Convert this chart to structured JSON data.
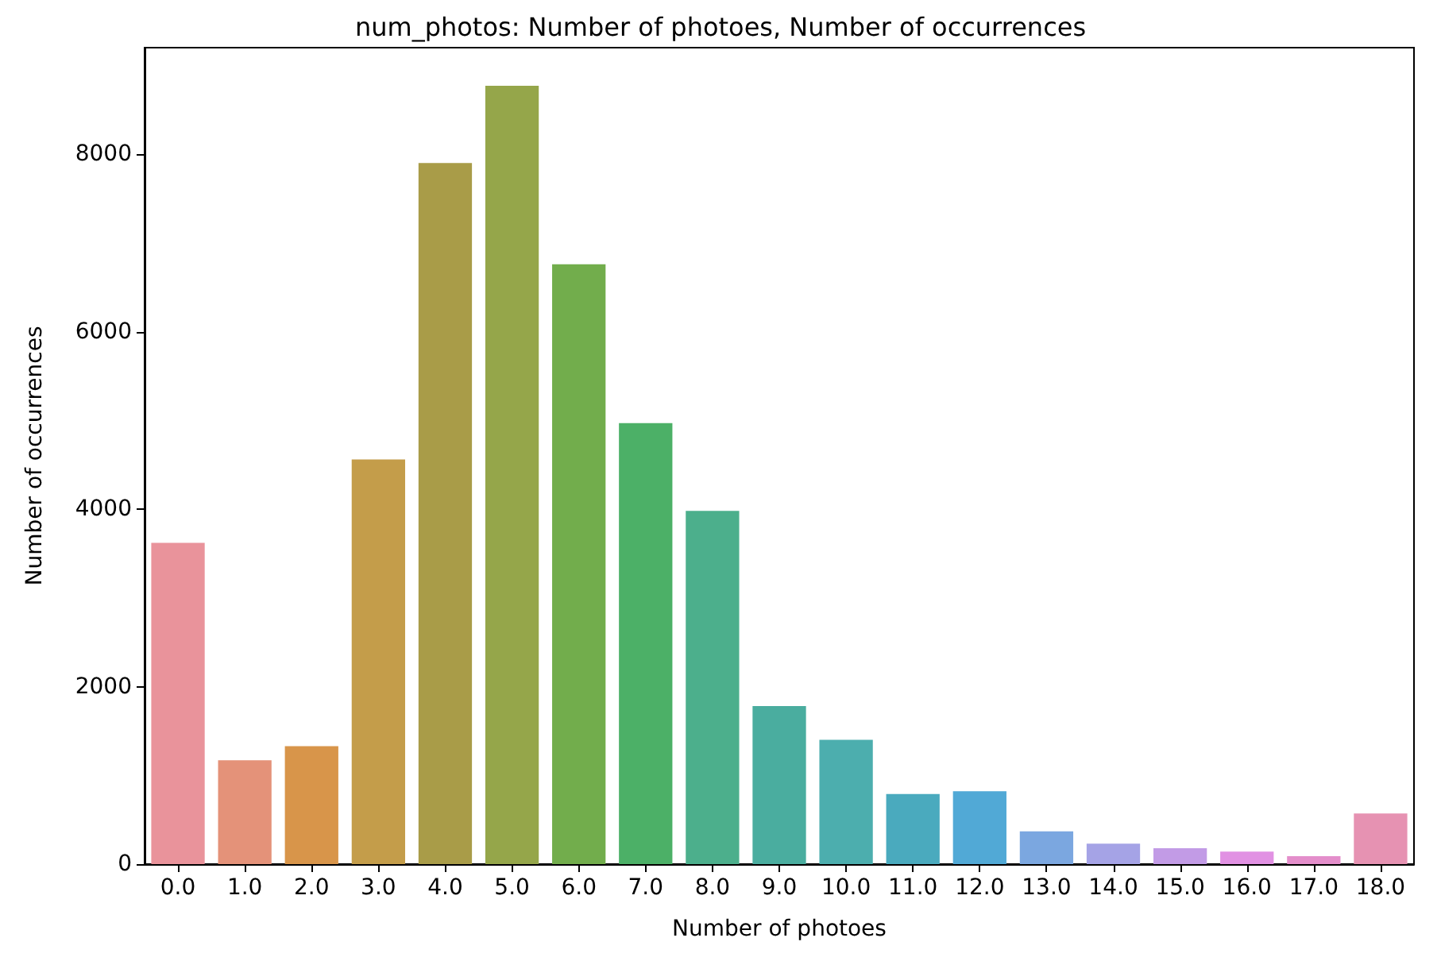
{
  "chart_data": {
    "type": "bar",
    "title": "num_photos: Number of photoes, Number of occurrences",
    "xlabel": "Number of photoes",
    "ylabel": "Number of occurrences",
    "categories": [
      "0.0",
      "1.0",
      "2.0",
      "3.0",
      "4.0",
      "5.0",
      "6.0",
      "7.0",
      "8.0",
      "9.0",
      "10.0",
      "11.0",
      "12.0",
      "13.0",
      "14.0",
      "15.0",
      "16.0",
      "17.0",
      "18.0"
    ],
    "values": [
      3620,
      1170,
      1330,
      4560,
      7900,
      8770,
      6760,
      4970,
      3980,
      1780,
      1400,
      790,
      820,
      370,
      230,
      180,
      140,
      90,
      570
    ],
    "colors": [
      "#e9939b",
      "#e49279",
      "#d8954a",
      "#c49d4a",
      "#a99c48",
      "#95a64a",
      "#72ad4c",
      "#4cb067",
      "#4caf8c",
      "#4aad9f",
      "#4caeae",
      "#4aaabe",
      "#51a9d6",
      "#7ba7e0",
      "#a5a3e6",
      "#c29be6",
      "#e191e3",
      "#e48ecb",
      "#e692b2"
    ],
    "ylim": [
      0,
      9200
    ],
    "yticks": [
      0,
      2000,
      4000,
      6000,
      8000
    ],
    "grid": false
  }
}
